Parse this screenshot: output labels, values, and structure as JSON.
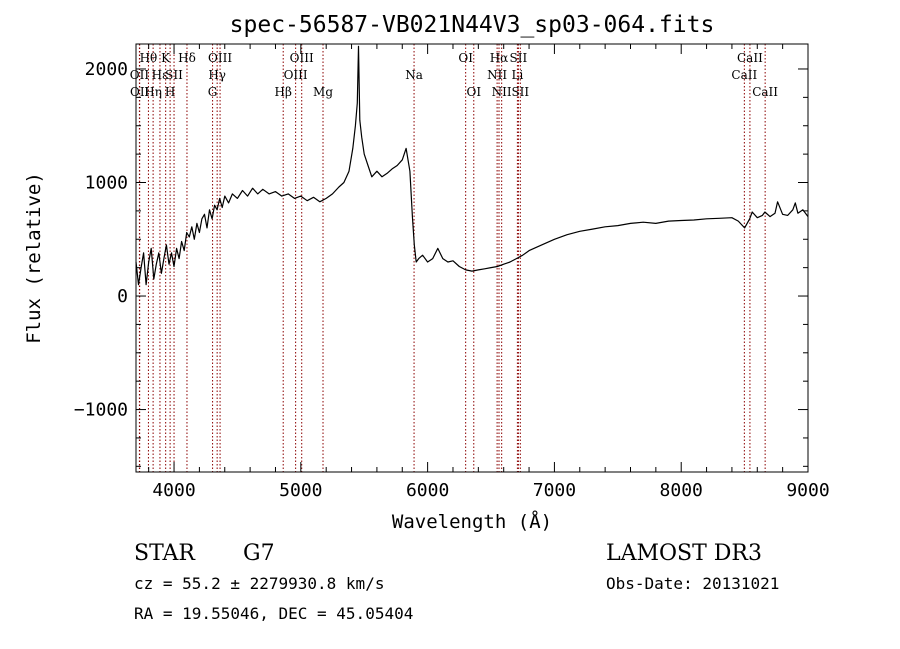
{
  "chart_data": {
    "type": "line",
    "title": "spec-56587-VB021N44V3_sp03-064.fits",
    "xlabel": "Wavelength (Å)",
    "ylabel": "Flux (relative)",
    "xlim": [
      3700,
      9000
    ],
    "ylim": [
      -1550,
      2220
    ],
    "x_ticks": [
      4000,
      5000,
      6000,
      7000,
      8000,
      9000
    ],
    "y_ticks": [
      -1000,
      0,
      1000,
      2000
    ],
    "grid": false,
    "line_color": "#000000",
    "marker_color": "#8b0000",
    "series": [
      {
        "x": [
          3700,
          3720,
          3740,
          3760,
          3780,
          3800,
          3820,
          3840,
          3860,
          3880,
          3900,
          3920,
          3940,
          3960,
          3980,
          4000,
          4020,
          4040,
          4060,
          4080,
          4100,
          4120,
          4140,
          4160,
          4180,
          4200,
          4220,
          4240,
          4260,
          4280,
          4300,
          4320,
          4340,
          4360,
          4380,
          4400,
          4430,
          4460,
          4500,
          4540,
          4580,
          4620,
          4660,
          4700,
          4750,
          4800,
          4850,
          4900,
          4950,
          5000,
          5050,
          5100,
          5150,
          5200,
          5250,
          5300,
          5340,
          5380,
          5410,
          5430,
          5445,
          5455,
          5465,
          5480,
          5500,
          5530,
          5560,
          5600,
          5640,
          5680,
          5720,
          5760,
          5800,
          5830,
          5860,
          5880,
          5895,
          5910,
          5930,
          5960,
          6000,
          6040,
          6080,
          6120,
          6160,
          6200,
          6250,
          6300,
          6350,
          6400,
          6450,
          6500,
          6550,
          6600,
          6650,
          6700,
          6750,
          6800,
          6900,
          7000,
          7100,
          7200,
          7300,
          7400,
          7500,
          7600,
          7700,
          7800,
          7900,
          8000,
          8100,
          8200,
          8300,
          8400,
          8450,
          8500,
          8540,
          8560,
          8600,
          8640,
          8660,
          8700,
          8740,
          8760,
          8800,
          8840,
          8880,
          8900,
          8920,
          8960,
          9000
        ],
        "y": [
          300,
          100,
          250,
          380,
          100,
          300,
          420,
          150,
          280,
          380,
          200,
          330,
          450,
          280,
          380,
          260,
          420,
          330,
          480,
          400,
          560,
          520,
          610,
          500,
          640,
          560,
          680,
          720,
          600,
          760,
          680,
          800,
          760,
          860,
          780,
          880,
          820,
          900,
          860,
          930,
          880,
          950,
          900,
          940,
          900,
          920,
          880,
          900,
          860,
          880,
          840,
          870,
          830,
          860,
          900,
          960,
          1000,
          1100,
          1300,
          1500,
          1700,
          2200,
          1550,
          1400,
          1250,
          1150,
          1050,
          1100,
          1050,
          1080,
          1120,
          1150,
          1200,
          1300,
          1100,
          700,
          450,
          300,
          330,
          360,
          300,
          330,
          420,
          330,
          300,
          310,
          260,
          230,
          220,
          230,
          240,
          250,
          260,
          280,
          300,
          330,
          360,
          400,
          450,
          500,
          540,
          570,
          590,
          610,
          620,
          640,
          650,
          640,
          660,
          665,
          670,
          680,
          685,
          690,
          660,
          600,
          680,
          740,
          690,
          710,
          740,
          700,
          730,
          830,
          720,
          710,
          760,
          820,
          730,
          760,
          700
        ]
      }
    ],
    "spectral_lines": [
      {
        "label": "Hθ",
        "wavelength": 3798,
        "row": 0
      },
      {
        "label": "OII",
        "wavelength": 3727,
        "row": 1
      },
      {
        "label": "OII",
        "wavelength": 3729,
        "row": 2
      },
      {
        "label": "Hη",
        "wavelength": 3835,
        "row": 2
      },
      {
        "label": "Hε",
        "wavelength": 3889,
        "row": 1
      },
      {
        "label": "K",
        "wavelength": 3934,
        "row": 0
      },
      {
        "label": "SII",
        "wavelength": 4000,
        "row": 1
      },
      {
        "label": "H",
        "wavelength": 3969,
        "row": 2
      },
      {
        "label": "Hδ",
        "wavelength": 4102,
        "row": 0
      },
      {
        "label": "OIII",
        "wavelength": 4363,
        "row": 0
      },
      {
        "label": "Hγ",
        "wavelength": 4340,
        "row": 1
      },
      {
        "label": "G",
        "wavelength": 4304,
        "row": 2
      },
      {
        "label": "Hβ",
        "wavelength": 4861,
        "row": 2
      },
      {
        "label": "OIII",
        "wavelength": 5007,
        "row": 0
      },
      {
        "label": "OIII",
        "wavelength": 4959,
        "row": 1
      },
      {
        "label": "Mg",
        "wavelength": 5175,
        "row": 2
      },
      {
        "label": "Na",
        "wavelength": 5893,
        "row": 1
      },
      {
        "label": "OI",
        "wavelength": 6300,
        "row": 0
      },
      {
        "label": "OI",
        "wavelength": 6364,
        "row": 2
      },
      {
        "label": "Hα",
        "wavelength": 6563,
        "row": 0
      },
      {
        "label": "NII",
        "wavelength": 6548,
        "row": 1
      },
      {
        "label": "NII",
        "wavelength": 6584,
        "row": 2
      },
      {
        "label": "SII",
        "wavelength": 6716,
        "row": 0
      },
      {
        "label": "Li",
        "wavelength": 6708,
        "row": 1
      },
      {
        "label": "SII",
        "wavelength": 6731,
        "row": 2
      },
      {
        "label": "CaII",
        "wavelength": 8542,
        "row": 0
      },
      {
        "label": "CaII",
        "wavelength": 8498,
        "row": 1
      },
      {
        "label": "CaII",
        "wavelength": 8662,
        "row": 2
      }
    ]
  },
  "info": {
    "object_class": "STAR",
    "subclass": "G7",
    "survey": "LAMOST DR3",
    "redshift_text": "cz = 55.2 ± 2279930.8 km/s",
    "obs_date_text": "Obs-Date: 20131021",
    "coords_text": "RA =  19.55046, DEC =  45.05404"
  }
}
